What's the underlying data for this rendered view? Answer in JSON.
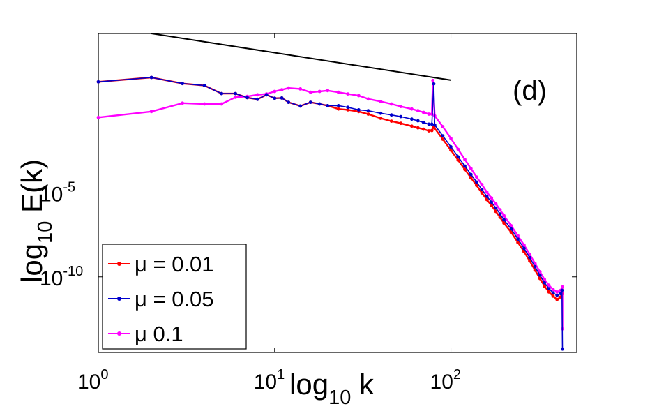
{
  "chart_data": {
    "type": "line",
    "panel_label": "(d)",
    "xlabel": {
      "main": "log",
      "sub": "10",
      "tail": " k"
    },
    "ylabel": {
      "main": "log",
      "sub": "10",
      "tail": " E(k)"
    },
    "x_scale": "log10",
    "y_scale": "log10",
    "xlim_log10": [
      0,
      2.714
    ],
    "ylim_log10": [
      -14.5,
      4.5
    ],
    "x_ticks": [
      {
        "base": "10",
        "exp": "0",
        "log": 0
      },
      {
        "base": "10",
        "exp": "1",
        "log": 1
      },
      {
        "base": "10",
        "exp": "2",
        "log": 2
      }
    ],
    "y_ticks": [
      {
        "base": "10",
        "exp": "-5",
        "log": -5
      },
      {
        "base": "10",
        "exp": "-10",
        "log": -10
      }
    ],
    "legend": {
      "location": "lower-left",
      "entries": [
        {
          "symbol": "μ",
          "text": " = 0.01"
        },
        {
          "symbol": "μ",
          "text": " = 0.05"
        },
        {
          "symbol": "μ",
          "text": " 0.1"
        }
      ]
    },
    "reference_line": {
      "name": "power-law slope",
      "color": "#000000",
      "points_log10": [
        [
          0.301,
          4.5
        ],
        [
          2.0,
          1.72
        ]
      ]
    },
    "series": [
      {
        "name": "μ = 0.01",
        "color": "#ff0000",
        "points_log10": [
          [
            0,
            1.62
          ],
          [
            0.301,
            1.88
          ],
          [
            0.477,
            1.52
          ],
          [
            0.602,
            1.4
          ],
          [
            0.699,
            0.92
          ],
          [
            0.778,
            0.92
          ],
          [
            0.845,
            0.68
          ],
          [
            0.903,
            0.58
          ],
          [
            0.954,
            0.85
          ],
          [
            1.0,
            0.64
          ],
          [
            1.041,
            0.66
          ],
          [
            1.079,
            0.4
          ],
          [
            1.146,
            0.18
          ],
          [
            1.204,
            0.4
          ],
          [
            1.255,
            0.3
          ],
          [
            1.301,
            0.2
          ],
          [
            1.362,
            0.0
          ],
          [
            1.415,
            -0.05
          ],
          [
            1.477,
            -0.15
          ],
          [
            1.531,
            -0.3
          ],
          [
            1.602,
            -0.55
          ],
          [
            1.663,
            -0.72
          ],
          [
            1.716,
            -0.85
          ],
          [
            1.778,
            -1.02
          ],
          [
            1.813,
            -1.12
          ],
          [
            1.845,
            -1.2
          ],
          [
            1.875,
            -1.3
          ],
          [
            1.892,
            -1.28
          ],
          [
            1.903,
            -1.08
          ],
          [
            1.954,
            -1.8
          ],
          [
            2.0,
            -2.45
          ],
          [
            2.041,
            -3.05
          ],
          [
            2.079,
            -3.6
          ],
          [
            2.114,
            -4.1
          ],
          [
            2.146,
            -4.55
          ],
          [
            2.176,
            -5.0
          ],
          [
            2.204,
            -5.4
          ],
          [
            2.23,
            -5.75
          ],
          [
            2.255,
            -6.1
          ],
          [
            2.279,
            -6.45
          ],
          [
            2.301,
            -6.8
          ],
          [
            2.342,
            -7.35
          ],
          [
            2.38,
            -7.95
          ],
          [
            2.415,
            -8.5
          ],
          [
            2.447,
            -9.05
          ],
          [
            2.477,
            -9.6
          ],
          [
            2.505,
            -10.1
          ],
          [
            2.531,
            -10.55
          ],
          [
            2.556,
            -10.9
          ],
          [
            2.58,
            -11.15
          ],
          [
            2.602,
            -11.35
          ],
          [
            2.623,
            -11.2
          ],
          [
            2.633,
            -11.0
          ]
        ]
      },
      {
        "name": "μ = 0.05",
        "color": "#0000cc",
        "points_log10": [
          [
            0,
            1.62
          ],
          [
            0.301,
            1.88
          ],
          [
            0.477,
            1.52
          ],
          [
            0.602,
            1.4
          ],
          [
            0.699,
            0.92
          ],
          [
            0.778,
            0.92
          ],
          [
            0.845,
            0.68
          ],
          [
            0.903,
            0.58
          ],
          [
            0.954,
            0.85
          ],
          [
            1.0,
            0.64
          ],
          [
            1.041,
            0.66
          ],
          [
            1.079,
            0.4
          ],
          [
            1.146,
            0.18
          ],
          [
            1.204,
            0.4
          ],
          [
            1.255,
            0.3
          ],
          [
            1.301,
            0.2
          ],
          [
            1.362,
            0.2
          ],
          [
            1.415,
            0.1
          ],
          [
            1.477,
            -0.05
          ],
          [
            1.531,
            -0.1
          ],
          [
            1.602,
            -0.25
          ],
          [
            1.663,
            -0.35
          ],
          [
            1.716,
            -0.45
          ],
          [
            1.778,
            -0.6
          ],
          [
            1.813,
            -0.7
          ],
          [
            1.845,
            -0.8
          ],
          [
            1.875,
            -0.9
          ],
          [
            1.892,
            -0.9
          ],
          [
            1.903,
            1.5
          ],
          [
            1.908,
            -0.95
          ],
          [
            1.954,
            -1.6
          ],
          [
            2.0,
            -2.25
          ],
          [
            2.041,
            -2.85
          ],
          [
            2.079,
            -3.4
          ],
          [
            2.114,
            -3.9
          ],
          [
            2.146,
            -4.35
          ],
          [
            2.176,
            -4.8
          ],
          [
            2.204,
            -5.2
          ],
          [
            2.23,
            -5.55
          ],
          [
            2.255,
            -5.9
          ],
          [
            2.279,
            -6.25
          ],
          [
            2.301,
            -6.6
          ],
          [
            2.342,
            -7.15
          ],
          [
            2.38,
            -7.75
          ],
          [
            2.415,
            -8.3
          ],
          [
            2.447,
            -8.85
          ],
          [
            2.477,
            -9.4
          ],
          [
            2.505,
            -9.9
          ],
          [
            2.531,
            -10.35
          ],
          [
            2.556,
            -10.7
          ],
          [
            2.58,
            -10.95
          ],
          [
            2.602,
            -11.1
          ],
          [
            2.623,
            -11.0
          ],
          [
            2.63,
            -10.8
          ],
          [
            2.633,
            -14.3
          ]
        ]
      },
      {
        "name": "μ 0.1",
        "color": "#ff00ff",
        "points_log10": [
          [
            0,
            -0.5
          ],
          [
            0.301,
            -0.15
          ],
          [
            0.477,
            0.35
          ],
          [
            0.602,
            0.3
          ],
          [
            0.699,
            0.3
          ],
          [
            0.778,
            0.7
          ],
          [
            0.845,
            0.75
          ],
          [
            0.903,
            0.85
          ],
          [
            0.954,
            0.9
          ],
          [
            1.0,
            1.05
          ],
          [
            1.041,
            1.15
          ],
          [
            1.079,
            1.25
          ],
          [
            1.146,
            1.2
          ],
          [
            1.204,
            1.0
          ],
          [
            1.255,
            1.05
          ],
          [
            1.301,
            1.1
          ],
          [
            1.362,
            1.0
          ],
          [
            1.415,
            0.9
          ],
          [
            1.477,
            0.8
          ],
          [
            1.531,
            0.6
          ],
          [
            1.602,
            0.45
          ],
          [
            1.663,
            0.3
          ],
          [
            1.716,
            0.15
          ],
          [
            1.778,
            0.0
          ],
          [
            1.813,
            -0.1
          ],
          [
            1.845,
            -0.2
          ],
          [
            1.875,
            -0.3
          ],
          [
            1.892,
            -0.3
          ],
          [
            1.898,
            1.7
          ],
          [
            1.908,
            -0.4
          ],
          [
            1.954,
            -1.05
          ],
          [
            2.0,
            -1.75
          ],
          [
            2.041,
            -2.4
          ],
          [
            2.079,
            -3.0
          ],
          [
            2.114,
            -3.55
          ],
          [
            2.146,
            -4.05
          ],
          [
            2.176,
            -4.5
          ],
          [
            2.204,
            -4.95
          ],
          [
            2.23,
            -5.3
          ],
          [
            2.255,
            -5.65
          ],
          [
            2.279,
            -6.0
          ],
          [
            2.301,
            -6.35
          ],
          [
            2.342,
            -6.95
          ],
          [
            2.38,
            -7.55
          ],
          [
            2.415,
            -8.1
          ],
          [
            2.447,
            -8.65
          ],
          [
            2.477,
            -9.2
          ],
          [
            2.505,
            -9.7
          ],
          [
            2.531,
            -10.15
          ],
          [
            2.556,
            -10.5
          ],
          [
            2.58,
            -10.75
          ],
          [
            2.602,
            -10.9
          ],
          [
            2.623,
            -10.8
          ],
          [
            2.633,
            -10.6
          ],
          [
            2.633,
            -13.1
          ]
        ]
      }
    ]
  }
}
